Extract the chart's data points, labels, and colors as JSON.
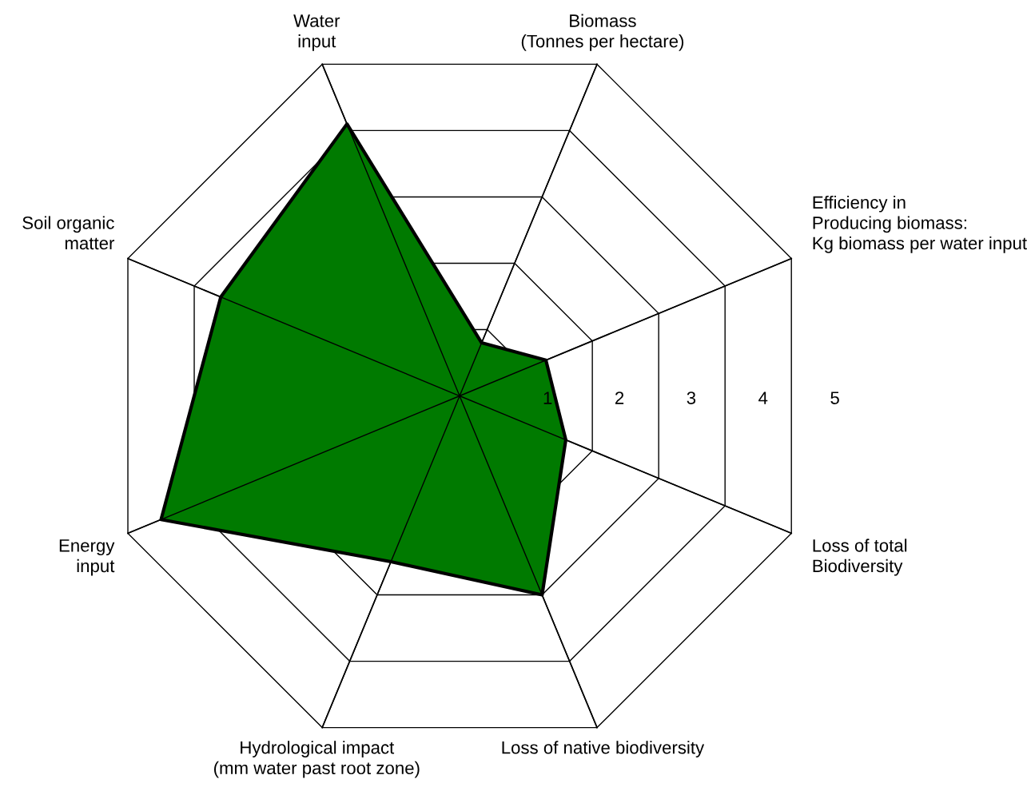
{
  "chart_data": {
    "type": "radar",
    "categories": [
      "Water\ninput",
      "Biomass\n(Tonnes per hectare)",
      "Efficiency in\nProducing biomass:\nKg biomass per water input",
      "Loss of total\nBiodiversity",
      "Loss of native biodiversity",
      "Hydrological impact\n(mm water past root zone)",
      "Energy\ninput",
      "Soil organic\nmatter"
    ],
    "series": [
      {
        "color": "#007a00",
        "values": [
          4.1,
          0.8,
          1.3,
          1.6,
          3.0,
          2.5,
          4.5,
          3.6
        ]
      }
    ],
    "ylim": [
      0,
      5
    ],
    "yticks": [
      1,
      2,
      3,
      4,
      5
    ],
    "grid": true,
    "marker": "none"
  }
}
